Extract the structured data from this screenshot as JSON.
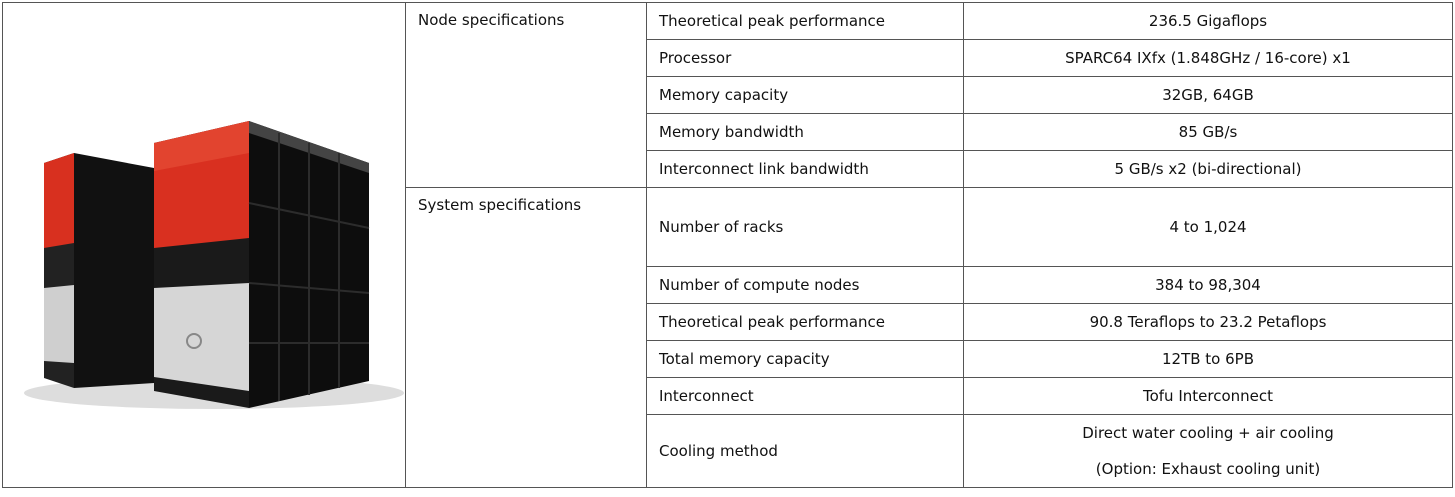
{
  "table": {
    "groups": [
      {
        "name": "Node specifications",
        "rows": [
          {
            "label": "Theoretical peak performance",
            "value": "236.5 Gigaflops"
          },
          {
            "label": "Processor",
            "value": "SPARC64 IXfx (1.848GHz / 16-core) x1"
          },
          {
            "label": "Memory capacity",
            "value": "32GB, 64GB"
          },
          {
            "label": "Memory bandwidth",
            "value": "85 GB/s"
          },
          {
            "label": "Interconnect link bandwidth",
            "value": "5 GB/s x2 (bi-directional)"
          }
        ]
      },
      {
        "name": "System specifications",
        "rows": [
          {
            "label": "Number of racks",
            "value": "4 to 1,024"
          },
          {
            "label": "Number of compute nodes",
            "value": "384 to 98,304"
          },
          {
            "label": "Theoretical peak performance",
            "value": "90.8 Teraflops to 23.2 Petaflops"
          },
          {
            "label": "Total memory capacity",
            "value": "12TB to 6PB"
          },
          {
            "label": "Interconnect",
            "value": "Tofu Interconnect"
          },
          {
            "label": "Cooling method",
            "value": [
              "Direct water cooling + air cooling",
              "(Option: Exhaust cooling unit)"
            ]
          }
        ]
      }
    ]
  }
}
